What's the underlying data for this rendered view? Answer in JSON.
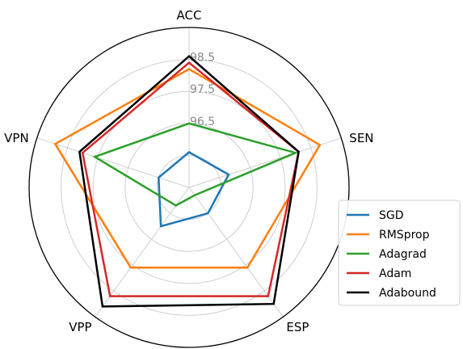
{
  "chart_data": {
    "type": "radar",
    "axes": [
      "ACC",
      "SEN",
      "ESP",
      "VPP",
      "VPN"
    ],
    "r_ticks": [
      "96.5",
      "97.5",
      "98.5"
    ],
    "r_min": 94.5,
    "r_max": 99.5,
    "grid": true,
    "legend_position": "right",
    "series": [
      {
        "name": "SGD",
        "color": "#1f77b4",
        "values": [
          95.6,
          95.8,
          95.5,
          96.0,
          95.5
        ]
      },
      {
        "name": "RMSprop",
        "color": "#ff7f0e",
        "values": [
          98.2,
          98.8,
          97.6,
          97.6,
          98.9
        ]
      },
      {
        "name": "Adagrad",
        "color": "#2ca02c",
        "values": [
          96.5,
          98.0,
          94.8,
          95.2,
          97.6
        ]
      },
      {
        "name": "Adam",
        "color": "#d62728",
        "values": [
          98.4,
          98.1,
          98.7,
          98.7,
          98.0
        ]
      },
      {
        "name": "Adabound",
        "color": "#000000",
        "values": [
          98.6,
          98.1,
          99.0,
          99.1,
          98.1
        ]
      }
    ]
  }
}
